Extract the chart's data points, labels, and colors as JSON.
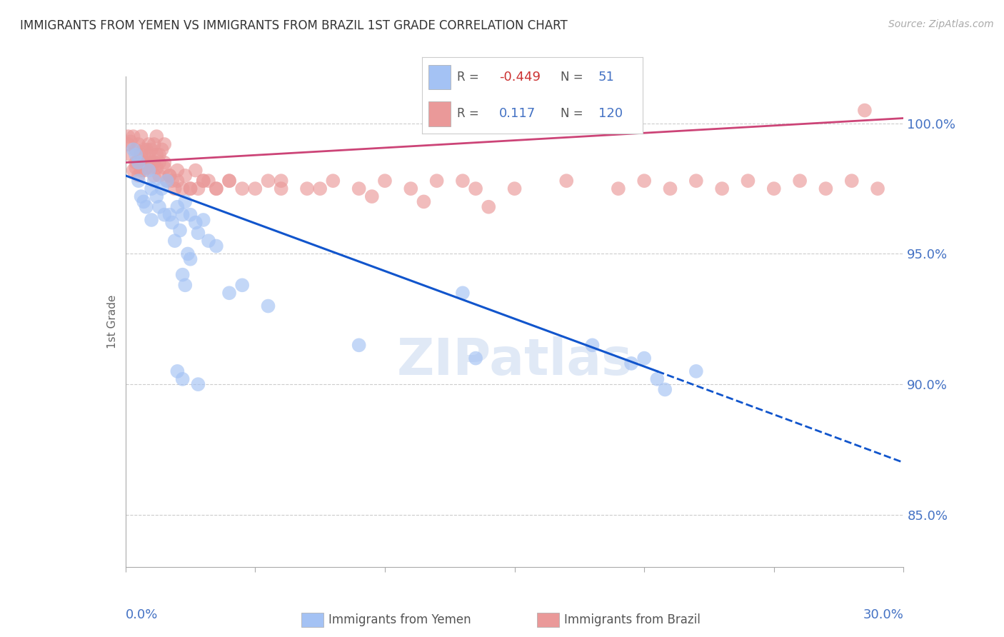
{
  "title": "IMMIGRANTS FROM YEMEN VS IMMIGRANTS FROM BRAZIL 1ST GRADE CORRELATION CHART",
  "source": "Source: ZipAtlas.com",
  "ylabel": "1st Grade",
  "xlim": [
    0.0,
    30.0
  ],
  "ylim": [
    83.0,
    101.8
  ],
  "yticks": [
    85.0,
    90.0,
    95.0,
    100.0
  ],
  "ytick_labels": [
    "85.0%",
    "90.0%",
    "95.0%",
    "100.0%"
  ],
  "color_yemen": "#a4c2f4",
  "color_brazil": "#ea9999",
  "color_yemen_line": "#1155cc",
  "color_brazil_line": "#cc4477",
  "yemen_x": [
    0.3,
    0.4,
    0.5,
    0.5,
    0.6,
    0.7,
    0.8,
    0.9,
    1.0,
    1.0,
    1.1,
    1.2,
    1.3,
    1.4,
    1.5,
    1.6,
    1.7,
    1.8,
    1.9,
    2.0,
    2.1,
    2.2,
    2.3,
    2.5,
    2.7,
    2.8,
    3.0,
    3.2,
    3.5,
    4.0,
    2.2,
    2.3,
    2.4,
    2.5,
    4.5,
    5.5,
    9.0,
    13.0,
    18.0,
    20.0,
    20.5,
    22.0
  ],
  "yemen_y": [
    99.0,
    98.8,
    98.5,
    97.8,
    97.2,
    97.0,
    96.8,
    98.2,
    97.5,
    96.3,
    97.8,
    97.2,
    96.8,
    97.5,
    96.5,
    97.8,
    96.5,
    96.2,
    95.5,
    96.8,
    95.9,
    96.5,
    97.0,
    96.5,
    96.2,
    95.8,
    96.3,
    95.5,
    95.3,
    93.5,
    94.2,
    93.8,
    95.0,
    94.8,
    93.8,
    93.0,
    91.5,
    93.5,
    91.5,
    91.0,
    90.2,
    90.5
  ],
  "yemen_x2": [
    2.0,
    2.2,
    2.8,
    13.5,
    19.5,
    20.8
  ],
  "yemen_y2": [
    90.5,
    90.2,
    90.0,
    91.0,
    90.8,
    89.8
  ],
  "brazil_x": [
    0.1,
    0.1,
    0.2,
    0.2,
    0.3,
    0.3,
    0.4,
    0.4,
    0.5,
    0.5,
    0.6,
    0.6,
    0.7,
    0.7,
    0.8,
    0.8,
    0.9,
    0.9,
    1.0,
    1.0,
    1.1,
    1.1,
    1.2,
    1.2,
    1.3,
    1.3,
    1.4,
    1.5,
    1.5,
    1.6,
    1.7,
    1.8,
    1.9,
    2.0,
    2.2,
    2.3,
    2.5,
    2.7,
    2.8,
    3.0,
    3.2,
    3.5,
    4.0,
    4.5,
    5.5,
    6.0,
    7.5,
    9.5,
    11.5,
    13.5,
    14.0,
    28.5
  ],
  "brazil_y": [
    99.2,
    99.5,
    99.3,
    98.8,
    99.5,
    98.2,
    99.0,
    98.5,
    99.2,
    98.0,
    98.8,
    99.5,
    99.0,
    98.2,
    99.0,
    98.5,
    99.2,
    98.8,
    98.5,
    99.0,
    99.2,
    98.0,
    98.8,
    99.5,
    98.0,
    98.8,
    99.0,
    98.5,
    99.2,
    97.8,
    98.0,
    97.8,
    97.5,
    98.2,
    97.5,
    98.0,
    97.5,
    98.2,
    97.5,
    97.8,
    97.8,
    97.5,
    97.8,
    97.5,
    97.8,
    97.5,
    97.5,
    97.2,
    97.0,
    97.5,
    96.8,
    100.5
  ],
  "brazil_x2": [
    0.4,
    0.5,
    0.6,
    0.7,
    0.8,
    0.9,
    1.0,
    1.1,
    1.2,
    1.3,
    1.5,
    1.7,
    2.0,
    2.5,
    3.0,
    3.5,
    4.0,
    5.0,
    6.0,
    7.0,
    8.0,
    9.0,
    10.0,
    11.0,
    12.0,
    13.0,
    15.0,
    17.0,
    19.0,
    20.0,
    21.0,
    22.0,
    23.0,
    24.0,
    25.0,
    26.0,
    27.0,
    28.0,
    29.0
  ],
  "brazil_y2": [
    98.3,
    98.5,
    98.2,
    98.5,
    98.3,
    98.5,
    98.3,
    98.5,
    98.3,
    98.5,
    98.3,
    98.0,
    97.8,
    97.5,
    97.8,
    97.5,
    97.8,
    97.5,
    97.8,
    97.5,
    97.8,
    97.5,
    97.8,
    97.5,
    97.8,
    97.8,
    97.5,
    97.8,
    97.5,
    97.8,
    97.5,
    97.8,
    97.5,
    97.8,
    97.5,
    97.8,
    97.5,
    97.8,
    97.5
  ],
  "yemen_line_x0": 0.0,
  "yemen_line_y0": 98.0,
  "yemen_line_x1": 20.5,
  "yemen_line_y1": 90.5,
  "yemen_dash_x0": 20.5,
  "yemen_dash_y0": 90.5,
  "yemen_dash_x1": 30.0,
  "yemen_dash_y1": 87.0,
  "brazil_line_x0": 0.0,
  "brazil_line_y0": 98.5,
  "brazil_line_x1": 30.0,
  "brazil_line_y1": 100.2
}
